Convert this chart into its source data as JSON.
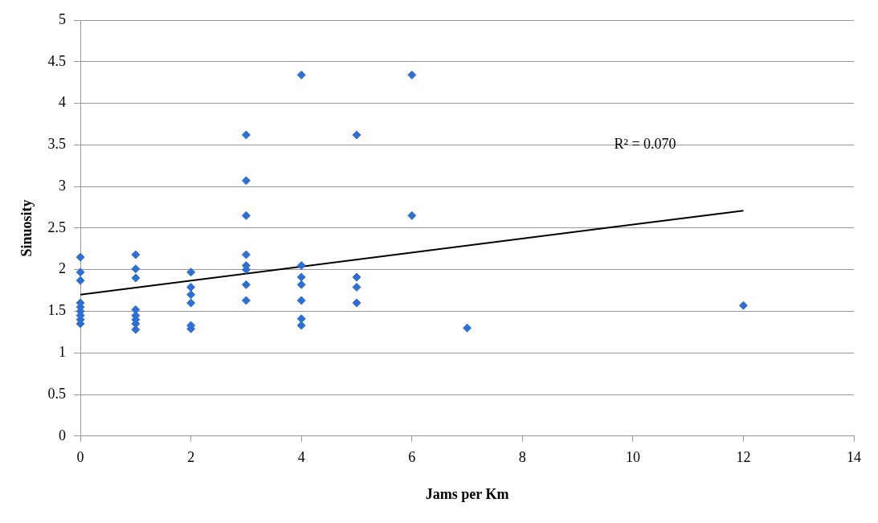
{
  "chart_data": {
    "type": "scatter",
    "xlabel": "Jams per Km",
    "ylabel": "Sinuosity",
    "xlim": [
      0,
      14
    ],
    "xticks": [
      0,
      2,
      4,
      6,
      8,
      10,
      12,
      14
    ],
    "ylim": [
      0,
      5
    ],
    "yticks": [
      0,
      0.5,
      1,
      1.5,
      2,
      2.5,
      3,
      3.5,
      4,
      4.5,
      5
    ],
    "grid": "y",
    "legend": false,
    "marker": "diamond",
    "annotations": [
      "R² = 0.070"
    ],
    "series": [
      {
        "color": "#2f6fd0",
        "x": [
          0,
          0,
          0,
          0,
          0,
          0,
          0,
          0,
          0,
          1,
          1,
          1,
          1,
          1,
          1,
          1,
          1,
          2,
          2,
          2,
          2,
          2,
          2,
          3,
          3,
          3,
          3,
          3,
          3,
          3,
          3,
          4,
          4,
          4,
          4,
          4,
          4,
          4,
          5,
          5,
          5,
          5,
          6,
          6,
          7,
          12
        ],
        "values": [
          2.15,
          1.97,
          1.87,
          1.6,
          1.55,
          1.5,
          1.45,
          1.4,
          1.35,
          2.18,
          2.01,
          1.9,
          1.52,
          1.45,
          1.4,
          1.35,
          1.28,
          1.97,
          1.79,
          1.7,
          1.6,
          1.33,
          1.29,
          3.62,
          3.07,
          2.65,
          2.18,
          2.05,
          2,
          1.82,
          1.63,
          4.34,
          2.05,
          1.91,
          1.82,
          1.63,
          1.41,
          1.33,
          3.62,
          1.91,
          1.79,
          1.6,
          4.34,
          2.65,
          1.3,
          1.57
        ]
      },
      {
        "type": "line",
        "color": "#000000",
        "marker": "none",
        "line_style": "solid",
        "x": [
          0,
          12
        ],
        "values": [
          1.7,
          2.71
        ]
      }
    ]
  }
}
